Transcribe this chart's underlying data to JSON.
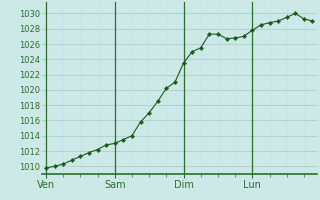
{
  "background_color": "#cce9e7",
  "grid_color_major": "#aed4d1",
  "grid_color_minor": "#c4e3e0",
  "line_color": "#1a5c1a",
  "marker_color": "#1a5c1a",
  "x_tick_labels": [
    "Ven",
    "Sam",
    "Dim",
    "Lun"
  ],
  "x_tick_positions": [
    0,
    8,
    16,
    24
  ],
  "ylim": [
    1009.0,
    1031.5
  ],
  "yticks": [
    1010,
    1012,
    1014,
    1016,
    1018,
    1020,
    1022,
    1024,
    1026,
    1028,
    1030
  ],
  "xlim": [
    -0.5,
    31.5
  ],
  "data_x": [
    0,
    1,
    2,
    3,
    4,
    5,
    6,
    7,
    8,
    9,
    10,
    11,
    12,
    13,
    14,
    15,
    16,
    17,
    18,
    19,
    20,
    21,
    22,
    23,
    24,
    25,
    26,
    27,
    28,
    29,
    30,
    31
  ],
  "data_y": [
    1009.8,
    1010.0,
    1010.3,
    1010.8,
    1011.3,
    1011.8,
    1012.2,
    1012.8,
    1013.0,
    1013.5,
    1014.0,
    1015.8,
    1017.0,
    1018.5,
    1020.2,
    1021.0,
    1023.5,
    1025.0,
    1025.5,
    1027.3,
    1027.3,
    1026.7,
    1026.8,
    1027.0,
    1027.8,
    1028.5,
    1028.8,
    1029.0,
    1029.5,
    1030.0,
    1029.3,
    1029.0
  ],
  "ylabel_fontsize": 6,
  "xlabel_fontsize": 7,
  "spine_color": "#2d6e2d",
  "vline_color": "#2d6e2d"
}
